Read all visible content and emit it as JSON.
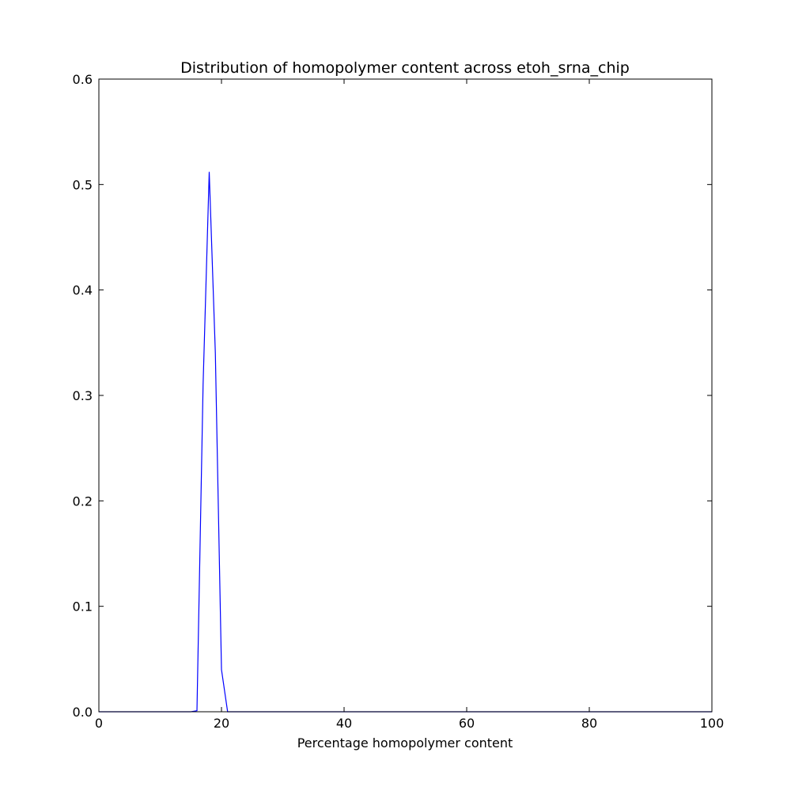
{
  "chart_data": {
    "type": "line",
    "title": "Distribution of homopolymer content across etoh_srna_chip",
    "xlabel": "Percentage homopolymer content",
    "ylabel": "",
    "xlim": [
      0,
      100
    ],
    "ylim": [
      0,
      0.6
    ],
    "xticks": [
      "0",
      "20",
      "40",
      "60",
      "80",
      "100"
    ],
    "yticks": [
      "0.0",
      "0.1",
      "0.2",
      "0.3",
      "0.4",
      "0.5",
      "0.6"
    ],
    "grid": false,
    "series": [
      {
        "color": "#0000ff",
        "x": [
          0,
          1,
          2,
          3,
          4,
          5,
          6,
          7,
          8,
          9,
          10,
          11,
          12,
          13,
          14,
          15,
          16,
          17,
          18,
          19,
          20,
          21,
          22,
          23,
          24,
          25,
          30,
          40,
          50,
          60,
          70,
          80,
          90,
          100
        ],
        "y": [
          0,
          0,
          0,
          0,
          0,
          0,
          0,
          0,
          0,
          0,
          0,
          0,
          0,
          0,
          0,
          0,
          0.001,
          0.31,
          0.512,
          0.34,
          0.04,
          0,
          0,
          0,
          0,
          0,
          0,
          0,
          0,
          0,
          0,
          0,
          0,
          0
        ]
      }
    ]
  }
}
